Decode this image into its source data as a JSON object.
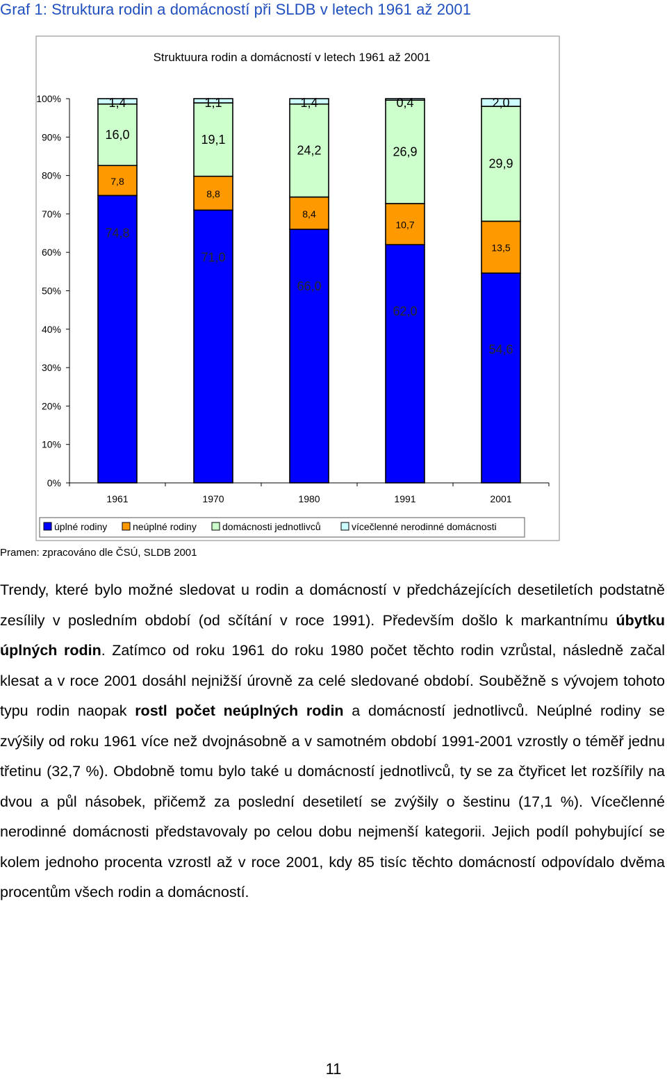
{
  "figure": {
    "caption": "Graf 1: Struktura rodin a domácností při SLDB v letech 1961 až 2001",
    "source": "Pramen: zpracováno dle ČSÚ, SLDB 2001"
  },
  "chart_data": {
    "type": "bar",
    "stacked": true,
    "percent_stacked": true,
    "title": "Struktuura rodin a domácností v letech 1961 až 2001",
    "categories": [
      "1961",
      "1970",
      "1980",
      "1991",
      "2001"
    ],
    "series": [
      {
        "name": "úplné rodiny",
        "color": "#0000ff",
        "values": [
          74.8,
          71.0,
          66.0,
          62.0,
          54.6
        ],
        "labels": [
          "74,8",
          "71,0",
          "66,0",
          "62,0",
          "54,6"
        ]
      },
      {
        "name": "neúplné rodiny",
        "color": "#ff9900",
        "values": [
          7.8,
          8.8,
          8.4,
          10.7,
          13.5
        ],
        "labels": [
          "7,8",
          "8,8",
          "8,4",
          "10,7",
          "13,5"
        ]
      },
      {
        "name": "domácnosti jednotlivců",
        "color": "#ccffcc",
        "values": [
          16.0,
          19.1,
          24.2,
          26.9,
          29.9
        ],
        "labels": [
          "16,0",
          "19,1",
          "24,2",
          "26,9",
          "29,9"
        ]
      },
      {
        "name": "vícečlenné nerodinné domácnosti",
        "color": "#ccffff",
        "values": [
          1.4,
          1.1,
          1.4,
          0.4,
          2.0
        ],
        "labels": [
          "1,4",
          "1,1",
          "1,4",
          "0,4",
          "2,0"
        ]
      }
    ],
    "y_ticks": [
      "0%",
      "10%",
      "20%",
      "30%",
      "40%",
      "50%",
      "60%",
      "70%",
      "80%",
      "90%",
      "100%"
    ],
    "ylim": [
      0,
      100
    ],
    "grid": false,
    "legend_position": "bottom"
  },
  "text": {
    "p1": "Trendy, které bylo možné sledovat u rodin a domácností v předcházejících desetiletích podstatně zesílily v posledním období (od sčítání v roce 1991). Především došlo k markantnímu ",
    "b1": "úbytku úplných rodin",
    "p2": ". Zatímco od roku 1961 do roku 1980 počet těchto rodin vzrůstal, následně začal klesat a v roce 2001 dosáhl nejnižší úrovně za celé sledované období. Souběžně s vývojem tohoto typu rodin naopak ",
    "b2": "rostl počet neúplných rodin",
    "p3": " a domácností jednotlivců. Neúplné rodiny se zvýšily od roku 1961 více než dvojnásobně a v samotném období 1991-2001 vzrostly o téměř jednu třetinu (32,7 %). Obdobně tomu bylo také u domácností jednotlivců, ty se za čtyřicet let rozšířily na dvou a půl násobek, přičemž za poslední desetiletí se zvýšily o šestinu (17,1 %). Vícečlenné nerodinné domácnosti představovaly po celou dobu nejmenší kategorii. Jejich podíl pohybující se kolem jednoho procenta vzrostl až v roce 2001, kdy 85 tisíc těchto domácností odpovídalo dvěma procentům všech rodin a domácností."
  },
  "page_number": "11"
}
